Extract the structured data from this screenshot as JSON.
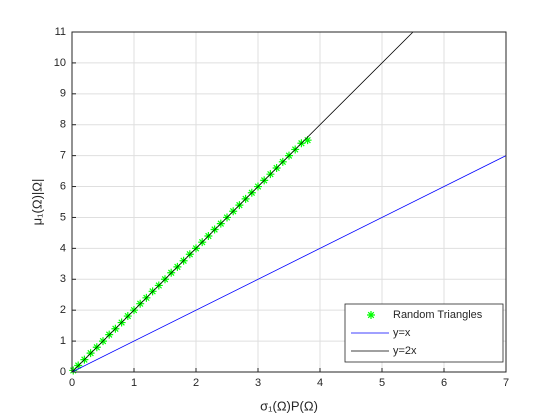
{
  "chart_data": {
    "type": "line",
    "x_label": "σ₁(Ω)P(Ω)",
    "y_label": "μ₁(Ω)|Ω|",
    "xlim": [
      0,
      7
    ],
    "ylim": [
      0,
      11
    ],
    "xticks": [
      0,
      1,
      2,
      3,
      4,
      5,
      6,
      7
    ],
    "yticks": [
      0,
      1,
      2,
      3,
      4,
      5,
      6,
      7,
      8,
      9,
      10,
      11
    ],
    "grid": true,
    "legend": "southeast",
    "series": [
      {
        "name": "Random Triangles",
        "color": "#00ff00",
        "mode": "markers",
        "x": [
          0.02,
          0.1,
          0.2,
          0.3,
          0.4,
          0.5,
          0.6,
          0.7,
          0.8,
          0.9,
          1.0,
          1.1,
          1.2,
          1.3,
          1.4,
          1.5,
          1.6,
          1.7,
          1.8,
          1.9,
          2.0,
          2.1,
          2.2,
          2.3,
          2.4,
          2.5,
          2.6,
          2.7,
          2.8,
          2.9,
          3.0,
          3.1,
          3.2,
          3.3,
          3.4,
          3.5,
          3.6,
          3.7,
          3.8
        ],
        "values": [
          0.05,
          0.21,
          0.4,
          0.61,
          0.8,
          1.0,
          1.21,
          1.4,
          1.6,
          1.81,
          2.0,
          2.21,
          2.4,
          2.61,
          2.8,
          3.0,
          3.21,
          3.4,
          3.6,
          3.81,
          4.0,
          4.2,
          4.4,
          4.61,
          4.8,
          5.0,
          5.2,
          5.4,
          5.6,
          5.8,
          6.0,
          6.2,
          6.4,
          6.6,
          6.8,
          7.0,
          7.2,
          7.4,
          7.5
        ]
      },
      {
        "name": "y=x",
        "color": "#0000ff",
        "mode": "line",
        "x": [
          0,
          7
        ],
        "values": [
          0,
          7
        ]
      },
      {
        "name": "y=2x",
        "color": "#000000",
        "mode": "line",
        "x": [
          0,
          5.5
        ],
        "values": [
          0,
          11
        ]
      }
    ]
  }
}
